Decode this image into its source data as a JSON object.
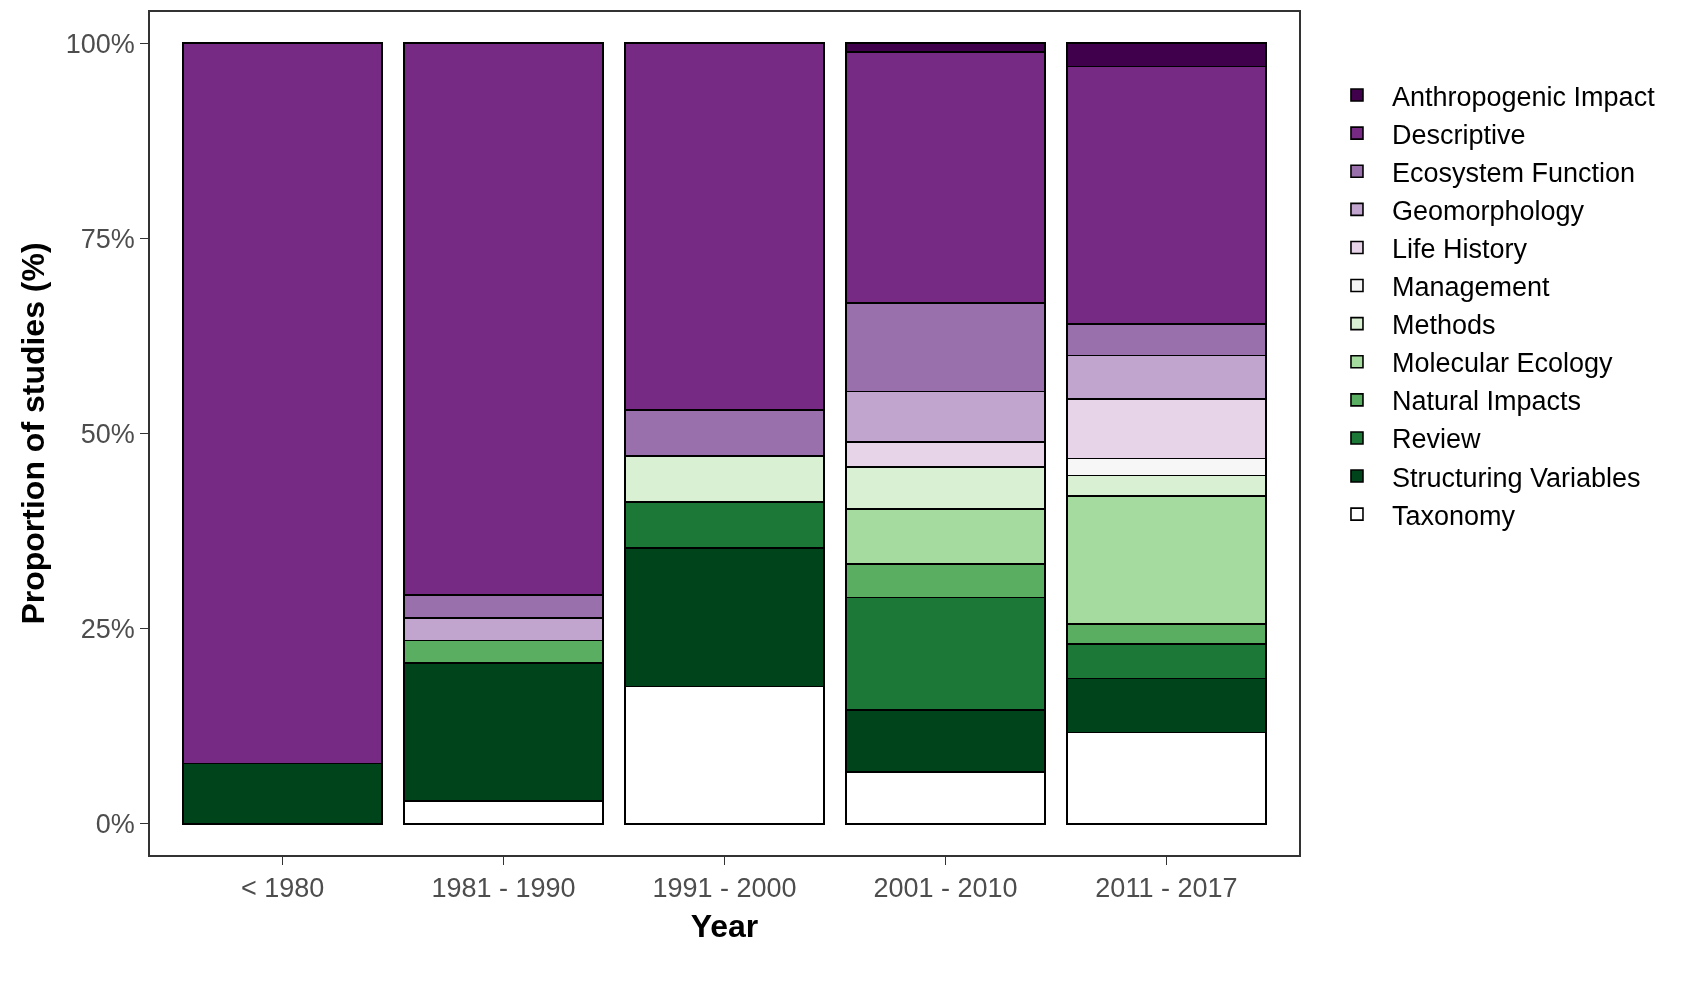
{
  "chart_data": {
    "type": "bar",
    "stacked": true,
    "xlabel": "Year",
    "ylabel": "Proportion of studies (%)",
    "categories": [
      "< 1980",
      "1981 - 1990",
      "1991 - 2000",
      "2001 - 2010",
      "2011 - 2017"
    ],
    "ylim": [
      -4,
      104
    ],
    "yticks": [
      {
        "value": 0,
        "label": "0%"
      },
      {
        "value": 25,
        "label": "25%"
      },
      {
        "value": 50,
        "label": "50%"
      },
      {
        "value": 75,
        "label": "75%"
      },
      {
        "value": 100,
        "label": "100%"
      }
    ],
    "legend": "right",
    "series": [
      {
        "name": "Taxonomy",
        "color": "#ffffff",
        "values": [
          null,
          2.9,
          17.6,
          6.6,
          11.7
        ]
      },
      {
        "name": "Structuring Variables",
        "color": "#00441b",
        "values": [
          7.7,
          17.7,
          17.7,
          8.0,
          6.9
        ]
      },
      {
        "name": "Review",
        "color": "#1b7837",
        "values": [
          null,
          null,
          5.9,
          14.4,
          4.4
        ]
      },
      {
        "name": "Natural Impacts",
        "color": "#5aae61",
        "values": [
          null,
          2.9,
          null,
          4.3,
          2.6
        ]
      },
      {
        "name": "Molecular Ecology",
        "color": "#a6dba0",
        "values": [
          null,
          null,
          null,
          7.0,
          16.4
        ]
      },
      {
        "name": "Methods",
        "color": "#d9f0d3",
        "values": [
          null,
          null,
          5.9,
          5.4,
          2.6
        ]
      },
      {
        "name": "Management",
        "color": "#f7f7f7",
        "values": [
          null,
          null,
          null,
          null,
          2.2
        ]
      },
      {
        "name": "Life History",
        "color": "#e7d4e8",
        "values": [
          null,
          null,
          null,
          3.2,
          7.6
        ]
      },
      {
        "name": "Geomorphology",
        "color": "#c2a5cf",
        "values": [
          null,
          2.9,
          null,
          6.5,
          5.6
        ]
      },
      {
        "name": "Ecosystem Function",
        "color": "#9970ab",
        "values": [
          null,
          2.9,
          5.9,
          11.3,
          4.0
        ]
      },
      {
        "name": "Descriptive",
        "color": "#762a83",
        "values": [
          92.3,
          70.7,
          47.0,
          32.2,
          33.0
        ]
      },
      {
        "name": "Anthropogenic Impact",
        "color": "#40004b",
        "values": [
          null,
          null,
          null,
          1.1,
          3.0
        ]
      }
    ]
  }
}
